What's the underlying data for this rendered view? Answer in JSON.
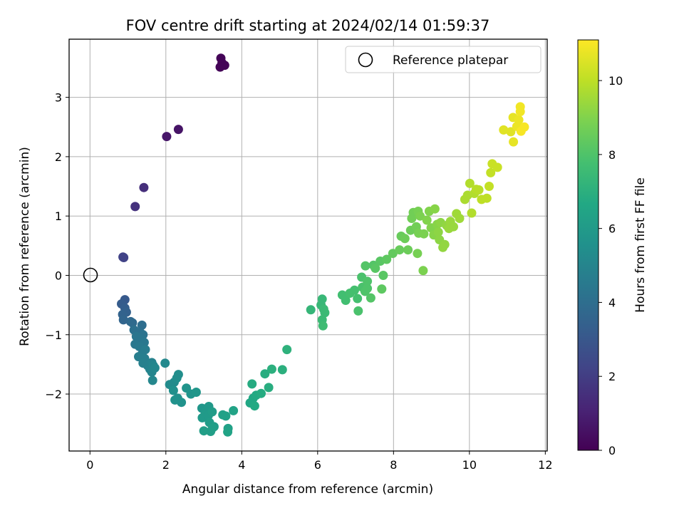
{
  "chart_data": {
    "type": "scatter",
    "title": "FOV centre drift starting at 2024/02/14 01:59:37",
    "xlabel": "Angular distance from reference (arcmin)",
    "ylabel": "Rotation from reference (arcmin)",
    "xlim": [
      -0.55,
      12.05
    ],
    "ylim": [
      -2.96,
      3.98
    ],
    "xticks": [
      0,
      2,
      4,
      6,
      8,
      10,
      12
    ],
    "yticks": [
      -2,
      -1,
      0,
      1,
      2,
      3
    ],
    "grid": true,
    "legend": {
      "position": "top-right",
      "entries": [
        "Reference platepar"
      ]
    },
    "reference_point": {
      "x": 0,
      "y": 0
    },
    "colorbar": {
      "label": "Hours from first FF file",
      "colormap": "viridis",
      "range": [
        0,
        11.1
      ],
      "ticks": [
        0,
        2,
        4,
        6,
        8,
        10
      ]
    },
    "points": [
      {
        "x": 3.45,
        "y": 3.66,
        "c": 0.1
      },
      {
        "x": 3.48,
        "y": 3.58,
        "c": 0.1
      },
      {
        "x": 3.55,
        "y": 3.54,
        "c": 0.1
      },
      {
        "x": 3.43,
        "y": 3.51,
        "c": 0.1
      },
      {
        "x": 2.33,
        "y": 2.46,
        "c": 0.6
      },
      {
        "x": 2.02,
        "y": 2.34,
        "c": 0.7
      },
      {
        "x": 1.42,
        "y": 1.48,
        "c": 1.5
      },
      {
        "x": 1.19,
        "y": 1.16,
        "c": 1.6
      },
      {
        "x": 0.87,
        "y": 0.31,
        "c": 2.2
      },
      {
        "x": 0.89,
        "y": 0.3,
        "c": 2.2
      },
      {
        "x": 0.92,
        "y": -0.41,
        "c": 3.1
      },
      {
        "x": 0.83,
        "y": -0.48,
        "c": 3.2
      },
      {
        "x": 0.92,
        "y": -0.55,
        "c": 3.3
      },
      {
        "x": 0.96,
        "y": -0.62,
        "c": 3.4
      },
      {
        "x": 0.86,
        "y": -0.66,
        "c": 3.5
      },
      {
        "x": 0.88,
        "y": -0.75,
        "c": 3.6
      },
      {
        "x": 1.07,
        "y": -0.78,
        "c": 3.7
      },
      {
        "x": 1.12,
        "y": -0.8,
        "c": 3.8
      },
      {
        "x": 1.37,
        "y": -0.84,
        "c": 4.0
      },
      {
        "x": 1.16,
        "y": -0.92,
        "c": 4.1
      },
      {
        "x": 1.32,
        "y": -0.96,
        "c": 4.1
      },
      {
        "x": 1.4,
        "y": -1.0,
        "c": 4.2
      },
      {
        "x": 1.22,
        "y": -1.03,
        "c": 4.3
      },
      {
        "x": 1.36,
        "y": -1.08,
        "c": 4.3
      },
      {
        "x": 1.43,
        "y": -1.13,
        "c": 4.4
      },
      {
        "x": 1.19,
        "y": -1.16,
        "c": 4.4
      },
      {
        "x": 1.3,
        "y": -1.2,
        "c": 4.5
      },
      {
        "x": 1.46,
        "y": -1.25,
        "c": 4.6
      },
      {
        "x": 1.37,
        "y": -1.33,
        "c": 4.6
      },
      {
        "x": 1.28,
        "y": -1.37,
        "c": 4.7
      },
      {
        "x": 1.44,
        "y": -1.4,
        "c": 4.7
      },
      {
        "x": 1.4,
        "y": -1.48,
        "c": 4.8
      },
      {
        "x": 1.52,
        "y": -1.52,
        "c": 4.8
      },
      {
        "x": 1.63,
        "y": -1.47,
        "c": 4.9
      },
      {
        "x": 1.58,
        "y": -1.58,
        "c": 4.9
      },
      {
        "x": 1.67,
        "y": -1.52,
        "c": 5.0
      },
      {
        "x": 1.63,
        "y": -1.63,
        "c": 5.0
      },
      {
        "x": 1.71,
        "y": -1.56,
        "c": 5.1
      },
      {
        "x": 1.65,
        "y": -1.77,
        "c": 5.1
      },
      {
        "x": 1.98,
        "y": -1.48,
        "c": 5.2
      },
      {
        "x": 2.1,
        "y": -1.84,
        "c": 5.3
      },
      {
        "x": 2.22,
        "y": -1.8,
        "c": 5.3
      },
      {
        "x": 2.29,
        "y": -1.73,
        "c": 5.4
      },
      {
        "x": 2.33,
        "y": -1.67,
        "c": 5.4
      },
      {
        "x": 2.2,
        "y": -1.94,
        "c": 5.5
      },
      {
        "x": 2.31,
        "y": -2.07,
        "c": 5.5
      },
      {
        "x": 2.24,
        "y": -2.1,
        "c": 5.6
      },
      {
        "x": 2.41,
        "y": -2.14,
        "c": 5.6
      },
      {
        "x": 2.54,
        "y": -1.9,
        "c": 5.7
      },
      {
        "x": 2.66,
        "y": -2.0,
        "c": 5.7
      },
      {
        "x": 2.8,
        "y": -1.97,
        "c": 5.8
      },
      {
        "x": 2.95,
        "y": -2.24,
        "c": 5.8
      },
      {
        "x": 3.04,
        "y": -2.29,
        "c": 5.9
      },
      {
        "x": 3.13,
        "y": -2.21,
        "c": 5.9
      },
      {
        "x": 3.03,
        "y": -2.35,
        "c": 6.0
      },
      {
        "x": 2.96,
        "y": -2.4,
        "c": 6.0
      },
      {
        "x": 3.12,
        "y": -2.36,
        "c": 6.0
      },
      {
        "x": 3.22,
        "y": -2.3,
        "c": 6.1
      },
      {
        "x": 3.15,
        "y": -2.48,
        "c": 6.1
      },
      {
        "x": 3.27,
        "y": -2.55,
        "c": 6.1
      },
      {
        "x": 3.0,
        "y": -2.62,
        "c": 6.2
      },
      {
        "x": 3.18,
        "y": -2.63,
        "c": 6.2
      },
      {
        "x": 3.23,
        "y": -2.57,
        "c": 6.2
      },
      {
        "x": 3.5,
        "y": -2.35,
        "c": 6.3
      },
      {
        "x": 3.58,
        "y": -2.37,
        "c": 6.3
      },
      {
        "x": 3.64,
        "y": -2.58,
        "c": 6.3
      },
      {
        "x": 3.63,
        "y": -2.64,
        "c": 6.4
      },
      {
        "x": 3.78,
        "y": -2.28,
        "c": 6.4
      },
      {
        "x": 4.22,
        "y": -2.15,
        "c": 6.6
      },
      {
        "x": 4.3,
        "y": -2.07,
        "c": 6.6
      },
      {
        "x": 4.34,
        "y": -2.2,
        "c": 6.7
      },
      {
        "x": 4.38,
        "y": -2.02,
        "c": 6.7
      },
      {
        "x": 4.51,
        "y": -1.99,
        "c": 6.8
      },
      {
        "x": 4.27,
        "y": -1.83,
        "c": 6.8
      },
      {
        "x": 4.71,
        "y": -1.89,
        "c": 6.9
      },
      {
        "x": 4.61,
        "y": -1.66,
        "c": 6.9
      },
      {
        "x": 4.79,
        "y": -1.58,
        "c": 7.0
      },
      {
        "x": 5.07,
        "y": -1.59,
        "c": 7.0
      },
      {
        "x": 5.19,
        "y": -1.25,
        "c": 7.1
      },
      {
        "x": 5.82,
        "y": -0.58,
        "c": 7.3
      },
      {
        "x": 6.09,
        "y": -0.5,
        "c": 7.4
      },
      {
        "x": 6.12,
        "y": -0.4,
        "c": 7.4
      },
      {
        "x": 6.16,
        "y": -0.57,
        "c": 7.5
      },
      {
        "x": 6.19,
        "y": -0.63,
        "c": 7.5
      },
      {
        "x": 6.12,
        "y": -0.75,
        "c": 7.5
      },
      {
        "x": 6.14,
        "y": -0.85,
        "c": 7.6
      },
      {
        "x": 6.65,
        "y": -0.33,
        "c": 7.7
      },
      {
        "x": 6.74,
        "y": -0.42,
        "c": 7.7
      },
      {
        "x": 6.85,
        "y": -0.3,
        "c": 7.8
      },
      {
        "x": 6.97,
        "y": -0.25,
        "c": 7.8
      },
      {
        "x": 7.05,
        "y": -0.39,
        "c": 7.8
      },
      {
        "x": 7.07,
        "y": -0.6,
        "c": 7.9
      },
      {
        "x": 7.16,
        "y": -0.03,
        "c": 7.9
      },
      {
        "x": 7.18,
        "y": -0.2,
        "c": 7.9
      },
      {
        "x": 7.25,
        "y": -0.27,
        "c": 8.0
      },
      {
        "x": 7.31,
        "y": -0.1,
        "c": 8.0
      },
      {
        "x": 7.31,
        "y": -0.22,
        "c": 8.0
      },
      {
        "x": 7.4,
        "y": -0.38,
        "c": 8.1
      },
      {
        "x": 7.26,
        "y": 0.16,
        "c": 8.1
      },
      {
        "x": 7.47,
        "y": 0.17,
        "c": 8.1
      },
      {
        "x": 7.52,
        "y": 0.12,
        "c": 8.2
      },
      {
        "x": 7.65,
        "y": 0.24,
        "c": 8.2
      },
      {
        "x": 7.73,
        "y": 0.0,
        "c": 8.2
      },
      {
        "x": 7.69,
        "y": -0.23,
        "c": 8.3
      },
      {
        "x": 7.82,
        "y": 0.27,
        "c": 8.3
      },
      {
        "x": 7.98,
        "y": 0.37,
        "c": 8.4
      },
      {
        "x": 8.16,
        "y": 0.43,
        "c": 8.5
      },
      {
        "x": 8.2,
        "y": 0.66,
        "c": 8.5
      },
      {
        "x": 8.3,
        "y": 0.62,
        "c": 8.6
      },
      {
        "x": 8.38,
        "y": 0.43,
        "c": 8.6
      },
      {
        "x": 8.45,
        "y": 0.76,
        "c": 8.6
      },
      {
        "x": 8.48,
        "y": 0.96,
        "c": 8.7
      },
      {
        "x": 8.52,
        "y": 1.06,
        "c": 8.7
      },
      {
        "x": 8.6,
        "y": 0.82,
        "c": 8.7
      },
      {
        "x": 8.63,
        "y": 0.37,
        "c": 8.8
      },
      {
        "x": 8.66,
        "y": 0.71,
        "c": 8.8
      },
      {
        "x": 8.65,
        "y": 1.08,
        "c": 8.8
      },
      {
        "x": 8.7,
        "y": 1.0,
        "c": 8.9
      },
      {
        "x": 8.78,
        "y": 0.08,
        "c": 8.9
      },
      {
        "x": 8.8,
        "y": 0.7,
        "c": 8.9
      },
      {
        "x": 8.88,
        "y": 0.93,
        "c": 9.0
      },
      {
        "x": 8.94,
        "y": 1.08,
        "c": 9.0
      },
      {
        "x": 8.99,
        "y": 0.8,
        "c": 9.0
      },
      {
        "x": 9.06,
        "y": 0.68,
        "c": 9.1
      },
      {
        "x": 9.09,
        "y": 1.12,
        "c": 9.1
      },
      {
        "x": 9.15,
        "y": 0.86,
        "c": 9.1
      },
      {
        "x": 9.18,
        "y": 0.73,
        "c": 9.2
      },
      {
        "x": 9.21,
        "y": 0.6,
        "c": 9.2
      },
      {
        "x": 9.24,
        "y": 0.89,
        "c": 9.2
      },
      {
        "x": 9.3,
        "y": 0.47,
        "c": 9.3
      },
      {
        "x": 9.35,
        "y": 0.52,
        "c": 9.3
      },
      {
        "x": 9.4,
        "y": 0.84,
        "c": 9.3
      },
      {
        "x": 9.46,
        "y": 0.79,
        "c": 9.4
      },
      {
        "x": 9.5,
        "y": 0.91,
        "c": 9.4
      },
      {
        "x": 9.58,
        "y": 0.82,
        "c": 9.4
      },
      {
        "x": 9.66,
        "y": 1.04,
        "c": 9.5
      },
      {
        "x": 9.74,
        "y": 0.96,
        "c": 9.5
      },
      {
        "x": 9.88,
        "y": 1.28,
        "c": 9.7
      },
      {
        "x": 9.95,
        "y": 1.35,
        "c": 9.7
      },
      {
        "x": 10.01,
        "y": 1.55,
        "c": 9.8
      },
      {
        "x": 10.06,
        "y": 1.05,
        "c": 9.8
      },
      {
        "x": 10.13,
        "y": 1.38,
        "c": 9.8
      },
      {
        "x": 10.18,
        "y": 1.45,
        "c": 9.9
      },
      {
        "x": 10.25,
        "y": 1.44,
        "c": 9.9
      },
      {
        "x": 10.32,
        "y": 1.28,
        "c": 10.0
      },
      {
        "x": 10.46,
        "y": 1.3,
        "c": 10.0
      },
      {
        "x": 10.52,
        "y": 1.5,
        "c": 10.1
      },
      {
        "x": 10.56,
        "y": 1.73,
        "c": 10.1
      },
      {
        "x": 10.6,
        "y": 1.88,
        "c": 10.2
      },
      {
        "x": 10.74,
        "y": 1.82,
        "c": 10.2
      },
      {
        "x": 10.9,
        "y": 2.45,
        "c": 10.6
      },
      {
        "x": 11.09,
        "y": 2.42,
        "c": 10.6
      },
      {
        "x": 11.16,
        "y": 2.25,
        "c": 10.7
      },
      {
        "x": 11.15,
        "y": 2.66,
        "c": 10.7
      },
      {
        "x": 11.25,
        "y": 2.51,
        "c": 10.8
      },
      {
        "x": 11.3,
        "y": 2.62,
        "c": 10.8
      },
      {
        "x": 11.34,
        "y": 2.76,
        "c": 10.9
      },
      {
        "x": 11.34,
        "y": 2.84,
        "c": 10.9
      },
      {
        "x": 11.36,
        "y": 2.43,
        "c": 11.0
      },
      {
        "x": 11.45,
        "y": 2.5,
        "c": 11.0
      }
    ]
  }
}
